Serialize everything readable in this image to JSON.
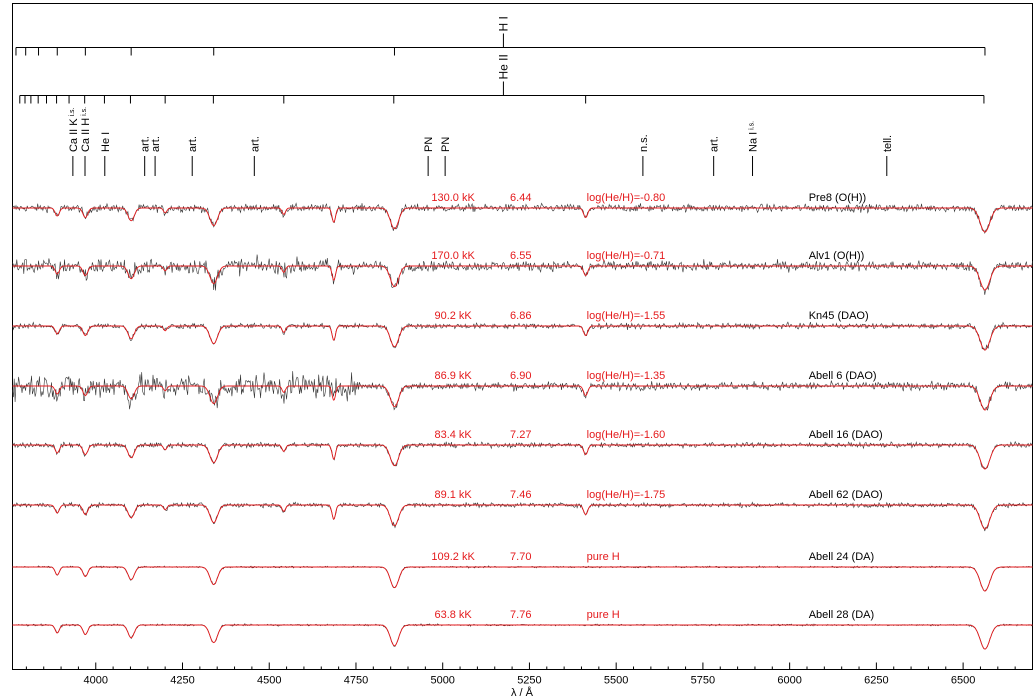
{
  "chart_data": {
    "type": "line",
    "title": "",
    "xlabel": "λ / Å",
    "ylabel": "",
    "xlim": [
      3760,
      6700
    ],
    "xticks": [
      4000,
      4250,
      4500,
      4750,
      5000,
      5250,
      5500,
      5750,
      6000,
      6250,
      6500
    ],
    "xtick_labels": [
      "4000",
      "4250",
      "4500",
      "4750",
      "5000",
      "5250",
      "5500",
      "5750",
      "6000",
      "6250",
      "6500"
    ],
    "grid": false,
    "legend": "none",
    "colors": {
      "observed": "#333333",
      "model": "#e41a1c",
      "annotation": "#000000"
    },
    "ladders": [
      {
        "label": "H I",
        "label_x": 5175,
        "lines": [
          3770,
          3798,
          3835,
          3889,
          3970,
          4102,
          4340,
          4861,
          6563
        ]
      },
      {
        "label": "He II",
        "label_x": 5175,
        "lines": [
          3781,
          3796,
          3813,
          3834,
          3858,
          3887,
          3923,
          3968,
          4025,
          4100,
          4200,
          4339,
          4542,
          4859,
          5412,
          6560
        ]
      }
    ],
    "line_ids": [
      {
        "x": 3934,
        "label": "Ca II K",
        "sub": "i.s."
      },
      {
        "x": 3969,
        "label": "Ca II H",
        "sub": "i.s."
      },
      {
        "x": 4026,
        "label": "He I"
      },
      {
        "x": 4141,
        "label": "art."
      },
      {
        "x": 4171,
        "label": "art."
      },
      {
        "x": 4278,
        "label": "art."
      },
      {
        "x": 4457,
        "label": "art."
      },
      {
        "x": 4958,
        "label": "PN"
      },
      {
        "x": 5007,
        "label": "PN"
      },
      {
        "x": 5577,
        "label": "n.s."
      },
      {
        "x": 5781,
        "label": "art."
      },
      {
        "x": 5893,
        "label": "Na I",
        "sub": "i.s."
      },
      {
        "x": 6280,
        "label": "tell."
      }
    ],
    "series": [
      {
        "name": "Pre8 (O(H))",
        "teff": "130.0 kK",
        "logg": "6.44",
        "he": "log(He/H)=-0.80",
        "noise": 0.085
      },
      {
        "name": "Alv1 (O(H))",
        "teff": "170.0 kK",
        "logg": "6.55",
        "he": "log(He/H)=-0.71",
        "noise": 0.11
      },
      {
        "name": "Kn45 (DAO)",
        "teff": "90.2 kK",
        "logg": "6.86",
        "he": "log(He/H)=-1.55",
        "noise": 0.06
      },
      {
        "name": "Abell 6   (DAO)",
        "teff": "86.9 kK",
        "logg": "6.90",
        "he": "log(He/H)=-1.35",
        "noise": 0.09
      },
      {
        "name": "Abell 16   (DAO)",
        "teff": "83.4 kK",
        "logg": "7.27",
        "he": "log(He/H)=-1.60",
        "noise": 0.055
      },
      {
        "name": "Abell 62   (DAO)",
        "teff": "89.1 kK",
        "logg": "7.46",
        "he": "log(He/H)=-1.75",
        "noise": 0.05
      },
      {
        "name": "Abell 24   (DA)",
        "teff": "109.2 kK",
        "logg": "7.70",
        "he": "pure H",
        "noise": 0.02
      },
      {
        "name": "Abell 28   (DA)",
        "teff": "63.8 kK",
        "logg": "7.76",
        "he": "pure H",
        "noise": 0.02
      }
    ]
  }
}
